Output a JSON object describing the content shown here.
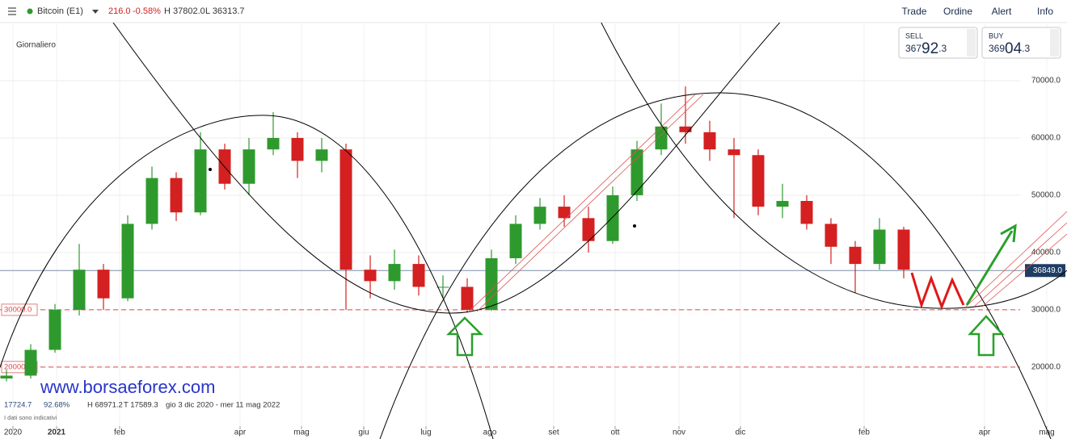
{
  "header": {
    "title": "Bitcoin (E1)",
    "change": "216.0",
    "change_pct": "-0.58%",
    "high": "H 37802.0",
    "low": "L 36313.7"
  },
  "menu": [
    "Trade",
    "Ordine",
    "Alert",
    "Info"
  ],
  "sell": {
    "label": "SELL",
    "prefix": "367",
    "big": "92",
    "suffix": ".3"
  },
  "buy": {
    "label": "BUY",
    "prefix": "369",
    "big": "04",
    "suffix": ".3"
  },
  "timeframe": "Giornaliero",
  "watermark": "www.borsaeforex.com",
  "stats": [
    "17724.7",
    "92.68%",
    "H 68971.2",
    "T 17589.3",
    "gio 3 dic 2020 - mer 11 mag 2022"
  ],
  "disclaimer": "I dati sono indicativi",
  "chart_data": {
    "type": "candlestick",
    "x_axis_labels": [
      "2020",
      "2021",
      "feb",
      "apr",
      "mag",
      "giu",
      "lug",
      "ago",
      "set",
      "ott",
      "nov",
      "dic",
      "feb",
      "apr",
      "mag"
    ],
    "open": [
      18000,
      18500,
      23000,
      30000,
      37000,
      32000,
      45000,
      53000,
      47000,
      58000,
      52000,
      58000,
      60000,
      56000,
      58000,
      37000,
      35000,
      38000,
      34000,
      34000,
      30000,
      39000,
      45000,
      48000,
      46000,
      42000,
      50000,
      58000,
      62000,
      61000,
      58000,
      57000,
      48000,
      49000,
      45000,
      41000,
      38000,
      44000
    ],
    "high": [
      19500,
      24000,
      31000,
      41500,
      38000,
      46500,
      55000,
      54000,
      61000,
      59000,
      60000,
      64500,
      61000,
      60000,
      59000,
      39500,
      40500,
      39500,
      36000,
      35500,
      40500,
      46500,
      49500,
      50000,
      48000,
      51500,
      59500,
      66000,
      69000,
      63000,
      60000,
      58000,
      52000,
      50000,
      46000,
      42000,
      46000,
      44500
    ],
    "low": [
      17500,
      18000,
      22500,
      29000,
      30000,
      31500,
      44000,
      45500,
      46500,
      51000,
      50000,
      57000,
      53000,
      54000,
      30000,
      32000,
      33500,
      32500,
      32000,
      29500,
      29800,
      38000,
      44000,
      44500,
      40000,
      41500,
      49000,
      57000,
      59000,
      56000,
      46000,
      46500,
      46000,
      44000,
      38000,
      33000,
      37000,
      35500
    ],
    "close": [
      18500,
      23000,
      30000,
      37000,
      32000,
      45000,
      53000,
      47000,
      58000,
      52000,
      58000,
      60000,
      56000,
      58000,
      37000,
      35000,
      38000,
      34000,
      34000,
      30000,
      39000,
      45000,
      48000,
      46000,
      42000,
      50000,
      58000,
      62000,
      61000,
      58000,
      57000,
      48000,
      49000,
      45000,
      41000,
      38000,
      44000,
      37000
    ],
    "up_color": "#2e9a2e",
    "down_color": "#d42020",
    "ylim": [
      8000,
      80000
    ],
    "yticks": [
      {
        "value": 20000,
        "label": "20000.0"
      },
      {
        "value": 30000,
        "label": "30000.0"
      },
      {
        "value": 40000,
        "label": "40000.0"
      },
      {
        "value": 50000,
        "label": "50000.0"
      },
      {
        "value": 60000,
        "label": "60000.0"
      },
      {
        "value": 70000,
        "label": "70000.0"
      }
    ],
    "grid": true,
    "levels": [
      {
        "value": 30000,
        "label": "30000.0"
      },
      {
        "value": 20000,
        "label": "20000.0"
      }
    ],
    "last_price": {
      "value": 36849,
      "label": "36849.0"
    }
  }
}
